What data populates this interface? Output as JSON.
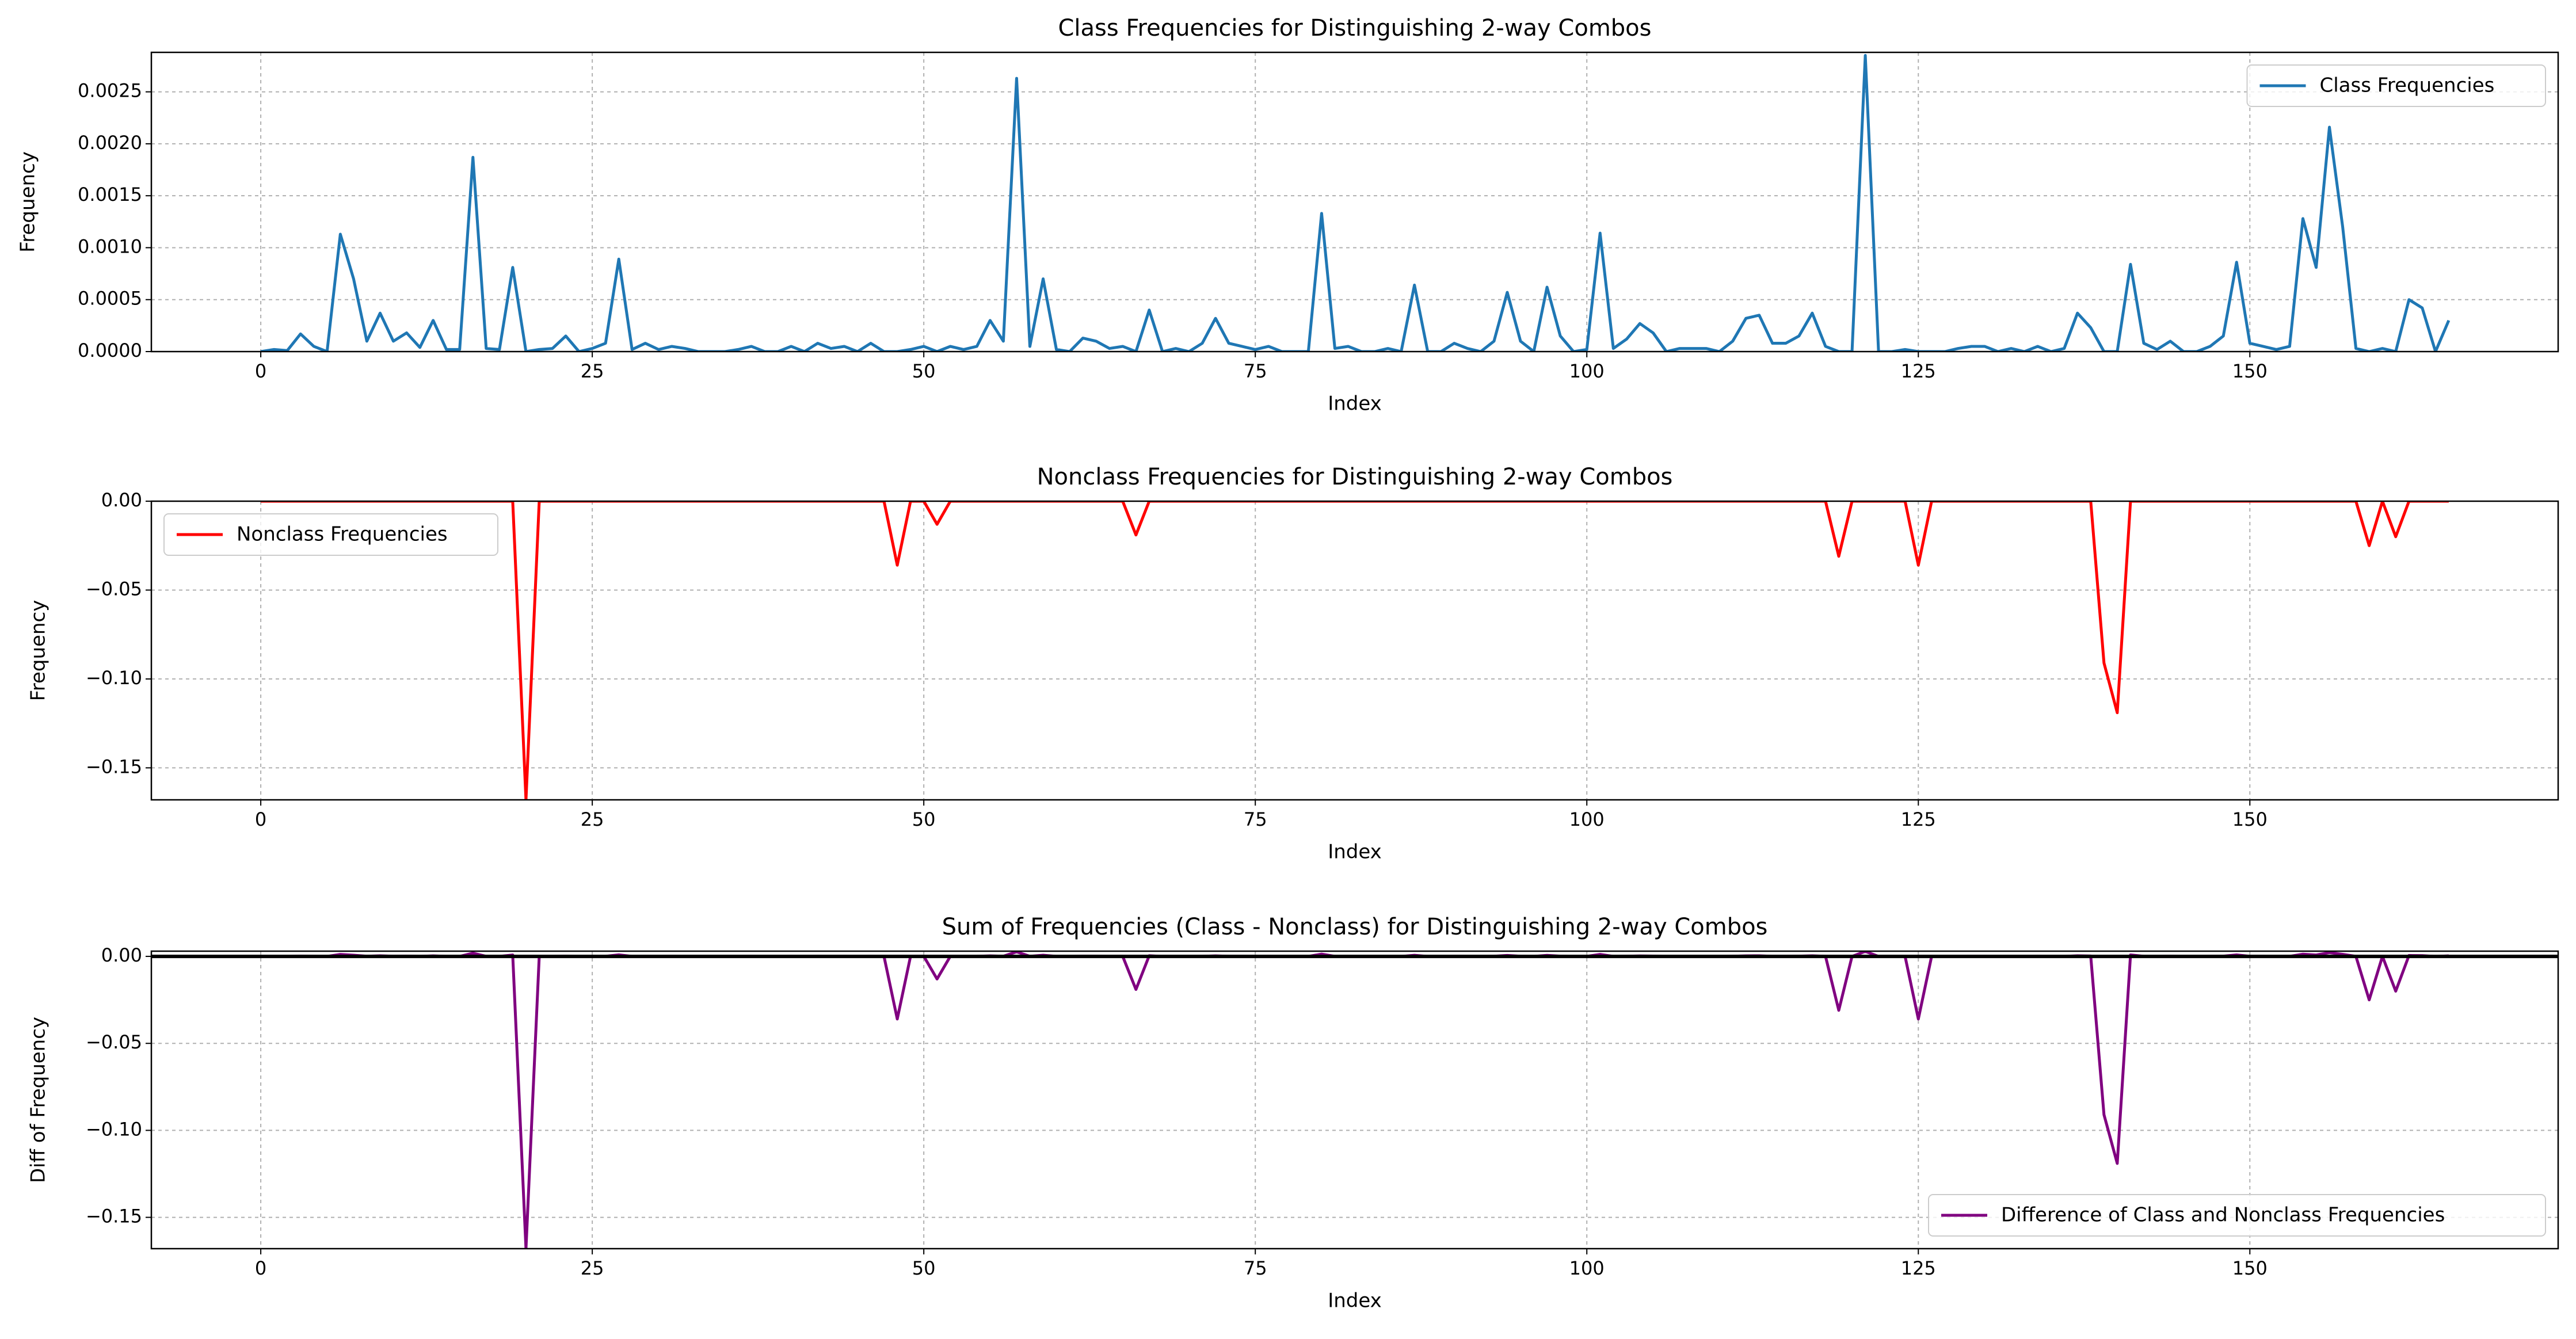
{
  "chart_data": [
    {
      "type": "line",
      "title": "Class Frequencies for Distinguishing 2-way Combos",
      "xlabel": "Index",
      "ylabel": "Frequency",
      "x": [
        0,
        1,
        2,
        3,
        4,
        5,
        6,
        7,
        8,
        9,
        10,
        11,
        12,
        13,
        14,
        15,
        16,
        17,
        18,
        19,
        20,
        21,
        22,
        23,
        24,
        25,
        26,
        27,
        28,
        29,
        30,
        31,
        32,
        33,
        34,
        35,
        36,
        37,
        38,
        39,
        40,
        41,
        42,
        43,
        44,
        45,
        46,
        47,
        48,
        49,
        50,
        51,
        52,
        53,
        54,
        55,
        56,
        57,
        58,
        59,
        60,
        61,
        62,
        63,
        64,
        65,
        66,
        67,
        68,
        69,
        70,
        71,
        72,
        73,
        74,
        75,
        76,
        77,
        78,
        79,
        80,
        81,
        82,
        83,
        84,
        85,
        86,
        87,
        88,
        89,
        90,
        91,
        92,
        93,
        94,
        95,
        96,
        97,
        98,
        99,
        100,
        101,
        102,
        103,
        104,
        105,
        106,
        107,
        108,
        109,
        110,
        111,
        112,
        113,
        114,
        115,
        116,
        117,
        118,
        119,
        120,
        121,
        122,
        123,
        124,
        125,
        126,
        127,
        128,
        129,
        130,
        131,
        132,
        133,
        134,
        135,
        136,
        137,
        138,
        139,
        140,
        141,
        142,
        143,
        144,
        145,
        146,
        147,
        148,
        149,
        150,
        151,
        152,
        153,
        154,
        155,
        156,
        157,
        158,
        159,
        160,
        161,
        162,
        163,
        164,
        165
      ],
      "series": [
        {
          "name": "Class Frequencies",
          "color": "#1f77b4",
          "values": [
            0,
            2e-05,
            1e-05,
            0.00017,
            5e-05,
            0,
            0.00113,
            0.0007,
            0.0001,
            0.00037,
            0.0001,
            0.00018,
            4e-05,
            0.0003,
            2e-05,
            2e-05,
            0.00187,
            3e-05,
            2e-05,
            0.00081,
            0,
            2e-05,
            3e-05,
            0.00015,
            0,
            3e-05,
            8e-05,
            0.00089,
            2e-05,
            8e-05,
            2e-05,
            5e-05,
            3e-05,
            0,
            0,
            0,
            2e-05,
            5e-05,
            0,
            0,
            5e-05,
            0,
            8e-05,
            3e-05,
            5e-05,
            0,
            8e-05,
            0,
            0,
            2e-05,
            5e-05,
            0,
            5e-05,
            2e-05,
            5e-05,
            0.0003,
            0.0001,
            0.00263,
            5e-05,
            0.0007,
            2e-05,
            0,
            0.00013,
            0.0001,
            3e-05,
            5e-05,
            0,
            0.0004,
            0,
            3e-05,
            0,
            8e-05,
            0.00032,
            8e-05,
            5e-05,
            2e-05,
            5e-05,
            0,
            0,
            0,
            0.00133,
            3e-05,
            5e-05,
            0,
            0,
            3e-05,
            0,
            0.00064,
            0,
            0,
            8e-05,
            3e-05,
            0,
            0.0001,
            0.00057,
            0.0001,
            0,
            0.00062,
            0.00015,
            0,
            2e-05,
            0.00114,
            3e-05,
            0.00012,
            0.00027,
            0.00018,
            0,
            3e-05,
            3e-05,
            3e-05,
            0,
            0.0001,
            0.00032,
            0.00035,
            8e-05,
            8e-05,
            0.00015,
            0.00037,
            5e-05,
            0,
            0,
            0.00285,
            0,
            0,
            2e-05,
            0,
            0,
            0,
            3e-05,
            5e-05,
            5e-05,
            0,
            3e-05,
            0,
            5e-05,
            0,
            3e-05,
            0.00037,
            0.00023,
            0,
            0,
            0.00084,
            8e-05,
            2e-05,
            0.0001,
            0,
            0,
            5e-05,
            0.00015,
            0.00086,
            8e-05,
            5e-05,
            2e-05,
            5e-05,
            0.00128,
            0.00081,
            0.00216,
            0.0012,
            3e-05,
            0,
            3e-05,
            0,
            0.0005,
            0.00042,
            0,
            0.0003
          ]
        }
      ],
      "xlim": [
        -8.25,
        173.25
      ],
      "ylim": [
        0,
        0.00288
      ],
      "xticks": [
        0,
        25,
        50,
        75,
        100,
        125,
        150
      ],
      "yticks": [
        {
          "value": 0,
          "label": "0.0000"
        },
        0.0005,
        {
          "value": 0.001,
          "label": "0.0010"
        },
        0.0015,
        {
          "value": 0.002,
          "label": "0.0020"
        },
        0.0025
      ],
      "grid": true,
      "legend": "upper right"
    },
    {
      "type": "line",
      "title": "Nonclass Frequencies for Distinguishing 2-way Combos",
      "xlabel": "Index",
      "ylabel": "Frequency",
      "x": [
        0,
        1,
        2,
        3,
        4,
        5,
        6,
        7,
        8,
        9,
        10,
        11,
        12,
        13,
        14,
        15,
        16,
        17,
        18,
        19,
        20,
        21,
        22,
        23,
        24,
        25,
        26,
        27,
        28,
        29,
        30,
        31,
        32,
        33,
        34,
        35,
        36,
        37,
        38,
        39,
        40,
        41,
        42,
        43,
        44,
        45,
        46,
        47,
        48,
        49,
        50,
        51,
        52,
        53,
        54,
        55,
        56,
        57,
        58,
        59,
        60,
        61,
        62,
        63,
        64,
        65,
        66,
        67,
        68,
        69,
        70,
        71,
        72,
        73,
        74,
        75,
        76,
        77,
        78,
        79,
        80,
        81,
        82,
        83,
        84,
        85,
        86,
        87,
        88,
        89,
        90,
        91,
        92,
        93,
        94,
        95,
        96,
        97,
        98,
        99,
        100,
        101,
        102,
        103,
        104,
        105,
        106,
        107,
        108,
        109,
        110,
        111,
        112,
        113,
        114,
        115,
        116,
        117,
        118,
        119,
        120,
        121,
        122,
        123,
        124,
        125,
        126,
        127,
        128,
        129,
        130,
        131,
        132,
        133,
        134,
        135,
        136,
        137,
        138,
        139,
        140,
        141,
        142,
        143,
        144,
        145,
        146,
        147,
        148,
        149,
        150,
        151,
        152,
        153,
        154,
        155,
        156,
        157,
        158,
        159,
        160,
        161,
        162,
        163,
        164,
        165
      ],
      "series": [
        {
          "name": "Nonclass Frequencies",
          "color": "#ff0000",
          "values": [
            0,
            0,
            0,
            0,
            0,
            0,
            0,
            0,
            0,
            0,
            0,
            0,
            0,
            0,
            0,
            0,
            0,
            0,
            0,
            0,
            -0.168,
            0,
            0,
            0,
            0,
            0,
            0,
            0,
            0,
            0,
            0,
            0,
            0,
            0,
            0,
            0,
            0,
            0,
            0,
            0,
            0,
            0,
            0,
            0,
            0,
            0,
            0,
            0,
            -0.036,
            0,
            0,
            -0.013,
            0,
            0,
            0,
            0,
            0,
            0,
            0,
            0,
            0,
            0,
            0,
            0,
            0,
            0,
            -0.019,
            0,
            0,
            0,
            0,
            0,
            0,
            0,
            0,
            0,
            0,
            0,
            0,
            0,
            0,
            0,
            0,
            0,
            0,
            0,
            0,
            0,
            0,
            0,
            0,
            0,
            0,
            0,
            0,
            0,
            0,
            0,
            0,
            0,
            0,
            0,
            0,
            0,
            0,
            0,
            0,
            0,
            0,
            0,
            0,
            0,
            0,
            0,
            0,
            0,
            0,
            0,
            0,
            -0.031,
            0,
            0,
            0,
            0,
            0,
            -0.036,
            0,
            0,
            0,
            0,
            0,
            0,
            0,
            0,
            0,
            0,
            0,
            0,
            0,
            -0.091,
            -0.119,
            0,
            0,
            0,
            0,
            0,
            0,
            0,
            0,
            0,
            0,
            0,
            0,
            0,
            0,
            0,
            0,
            0,
            0,
            -0.025,
            0,
            -0.02,
            0,
            0,
            0,
            0
          ]
        }
      ],
      "xlim": [
        -8.25,
        173.25
      ],
      "ylim": [
        -0.168,
        0
      ],
      "xticks": [
        0,
        25,
        50,
        75,
        100,
        125,
        150
      ],
      "yticks": [
        {
          "value": -0.15,
          "label": "−0.15"
        },
        {
          "value": -0.1,
          "label": "−0.10"
        },
        {
          "value": -0.05,
          "label": "−0.05"
        },
        {
          "value": 0,
          "label": "0.00"
        }
      ],
      "grid": true,
      "legend": "upper left"
    },
    {
      "type": "line",
      "title": "Sum of Frequencies (Class - Nonclass) for Distinguishing 2-way Combos",
      "xlabel": "Index",
      "ylabel": "Diff of Frequency",
      "x": [
        0,
        1,
        2,
        3,
        4,
        5,
        6,
        7,
        8,
        9,
        10,
        11,
        12,
        13,
        14,
        15,
        16,
        17,
        18,
        19,
        20,
        21,
        22,
        23,
        24,
        25,
        26,
        27,
        28,
        29,
        30,
        31,
        32,
        33,
        34,
        35,
        36,
        37,
        38,
        39,
        40,
        41,
        42,
        43,
        44,
        45,
        46,
        47,
        48,
        49,
        50,
        51,
        52,
        53,
        54,
        55,
        56,
        57,
        58,
        59,
        60,
        61,
        62,
        63,
        64,
        65,
        66,
        67,
        68,
        69,
        70,
        71,
        72,
        73,
        74,
        75,
        76,
        77,
        78,
        79,
        80,
        81,
        82,
        83,
        84,
        85,
        86,
        87,
        88,
        89,
        90,
        91,
        92,
        93,
        94,
        95,
        96,
        97,
        98,
        99,
        100,
        101,
        102,
        103,
        104,
        105,
        106,
        107,
        108,
        109,
        110,
        111,
        112,
        113,
        114,
        115,
        116,
        117,
        118,
        119,
        120,
        121,
        122,
        123,
        124,
        125,
        126,
        127,
        128,
        129,
        130,
        131,
        132,
        133,
        134,
        135,
        136,
        137,
        138,
        139,
        140,
        141,
        142,
        143,
        144,
        145,
        146,
        147,
        148,
        149,
        150,
        151,
        152,
        153,
        154,
        155,
        156,
        157,
        158,
        159,
        160,
        161,
        162,
        163,
        164,
        165
      ],
      "series": [
        {
          "name": "Difference of Class and Nonclass Frequencies",
          "color": "#800080",
          "values": [
            0,
            2e-05,
            1e-05,
            0.00017,
            5e-05,
            0,
            0.00113,
            0.0007,
            0.0001,
            0.00037,
            0.0001,
            0.00018,
            4e-05,
            0.0003,
            2e-05,
            2e-05,
            0.00187,
            3e-05,
            2e-05,
            0.00081,
            -0.168,
            2e-05,
            3e-05,
            0.00015,
            0,
            3e-05,
            8e-05,
            0.00089,
            2e-05,
            8e-05,
            2e-05,
            5e-05,
            3e-05,
            0,
            0,
            0,
            2e-05,
            5e-05,
            0,
            0,
            5e-05,
            0,
            8e-05,
            3e-05,
            5e-05,
            0,
            8e-05,
            0,
            -0.036,
            2e-05,
            5e-05,
            -0.013,
            5e-05,
            2e-05,
            5e-05,
            0.0003,
            0.0001,
            0.00263,
            5e-05,
            0.0007,
            2e-05,
            0,
            0.00013,
            0.0001,
            3e-05,
            5e-05,
            -0.019,
            0.0004,
            0,
            3e-05,
            0,
            8e-05,
            0.00032,
            8e-05,
            5e-05,
            2e-05,
            5e-05,
            0,
            0,
            0,
            0.00133,
            3e-05,
            5e-05,
            0,
            0,
            3e-05,
            0,
            0.00064,
            0,
            0,
            8e-05,
            3e-05,
            0,
            0.0001,
            0.00057,
            0.0001,
            0,
            0.00062,
            0.00015,
            0,
            2e-05,
            0.00114,
            3e-05,
            0.00012,
            0.00027,
            0.00018,
            0,
            3e-05,
            3e-05,
            3e-05,
            0,
            0.0001,
            0.00032,
            0.00035,
            8e-05,
            8e-05,
            0.00015,
            0.00037,
            5e-05,
            -0.031,
            0,
            0.00285,
            0,
            0,
            2e-05,
            -0.036,
            0,
            0,
            3e-05,
            5e-05,
            5e-05,
            0,
            3e-05,
            0,
            5e-05,
            0,
            3e-05,
            0.00037,
            0.00023,
            -0.091,
            -0.119,
            0.00084,
            8e-05,
            2e-05,
            0.0001,
            0,
            0,
            5e-05,
            0.00015,
            0.00086,
            8e-05,
            5e-05,
            2e-05,
            5e-05,
            0.00128,
            0.00081,
            0.00216,
            0.0012,
            3e-05,
            -0.025,
            3e-05,
            -0.02,
            0.0005,
            0.00042,
            0,
            0.0003
          ]
        }
      ],
      "xlim": [
        -8.25,
        173.25
      ],
      "ylim": [
        -0.168,
        0.003
      ],
      "xticks": [
        0,
        25,
        50,
        75,
        100,
        125,
        150
      ],
      "yticks": [
        {
          "value": -0.15,
          "label": "−0.15"
        },
        {
          "value": -0.1,
          "label": "−0.10"
        },
        {
          "value": -0.05,
          "label": "−0.05"
        },
        {
          "value": 0,
          "label": "0.00"
        }
      ],
      "grid": true,
      "legend": "lower right"
    }
  ]
}
